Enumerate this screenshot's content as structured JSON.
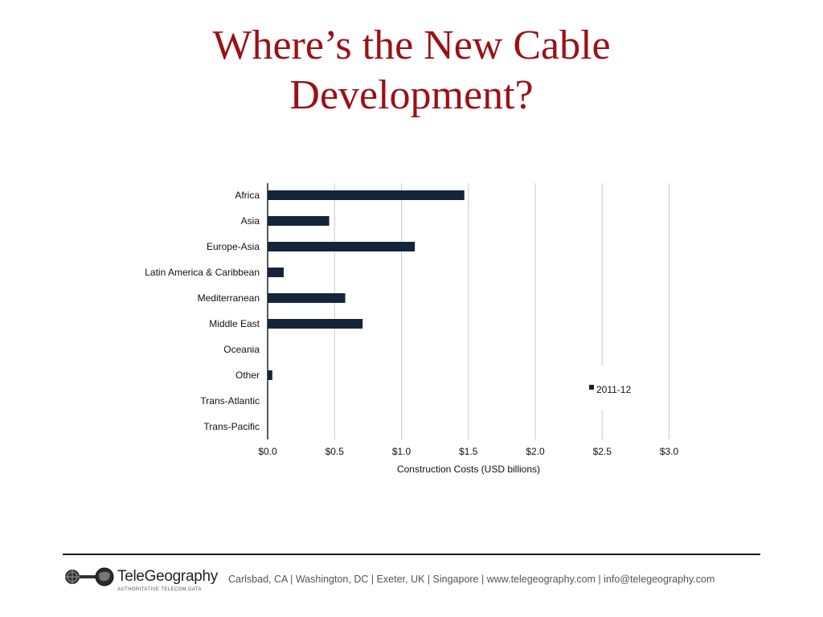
{
  "slide": {
    "title_lines": [
      "Where’s the New Cable",
      "Development?"
    ]
  },
  "chart_data": {
    "type": "bar",
    "orientation": "horizontal",
    "categories": [
      "Africa",
      "Asia",
      "Europe-Asia",
      "Latin America & Caribbean",
      "Mediterranean",
      "Middle East",
      "Oceania",
      "Other",
      "Trans-Atlantic",
      "Trans-Pacific"
    ],
    "series": [
      {
        "name": "2011-12",
        "values": [
          1.47,
          0.46,
          1.1,
          0.12,
          0.58,
          0.71,
          0.0,
          0.035,
          0.0,
          0.0
        ]
      }
    ],
    "xlabel": "Construction Costs (USD billions)",
    "ylabel": "",
    "xlim": [
      0,
      3.0
    ],
    "x_ticks": [
      0.0,
      0.5,
      1.0,
      1.5,
      2.0,
      2.5,
      3.0
    ],
    "x_tick_labels": [
      "$0.0",
      "$0.5",
      "$1.0",
      "$1.5",
      "$2.0",
      "$2.5",
      "$3.0"
    ],
    "grid": "vertical",
    "legend": "right",
    "bar_color": "#14253a"
  },
  "footer": {
    "brand": "TeleGeography",
    "tagline": "AUTHORITATIVE TELECOM DATA",
    "contact": "Carlsbad, CA | Washington, DC | Exeter, UK | Singapore | www.telegeography.com | info@telegeography.com"
  },
  "colors": {
    "title": "#9b1116",
    "bar": "#14253a",
    "grid": "#c8c8c8"
  }
}
